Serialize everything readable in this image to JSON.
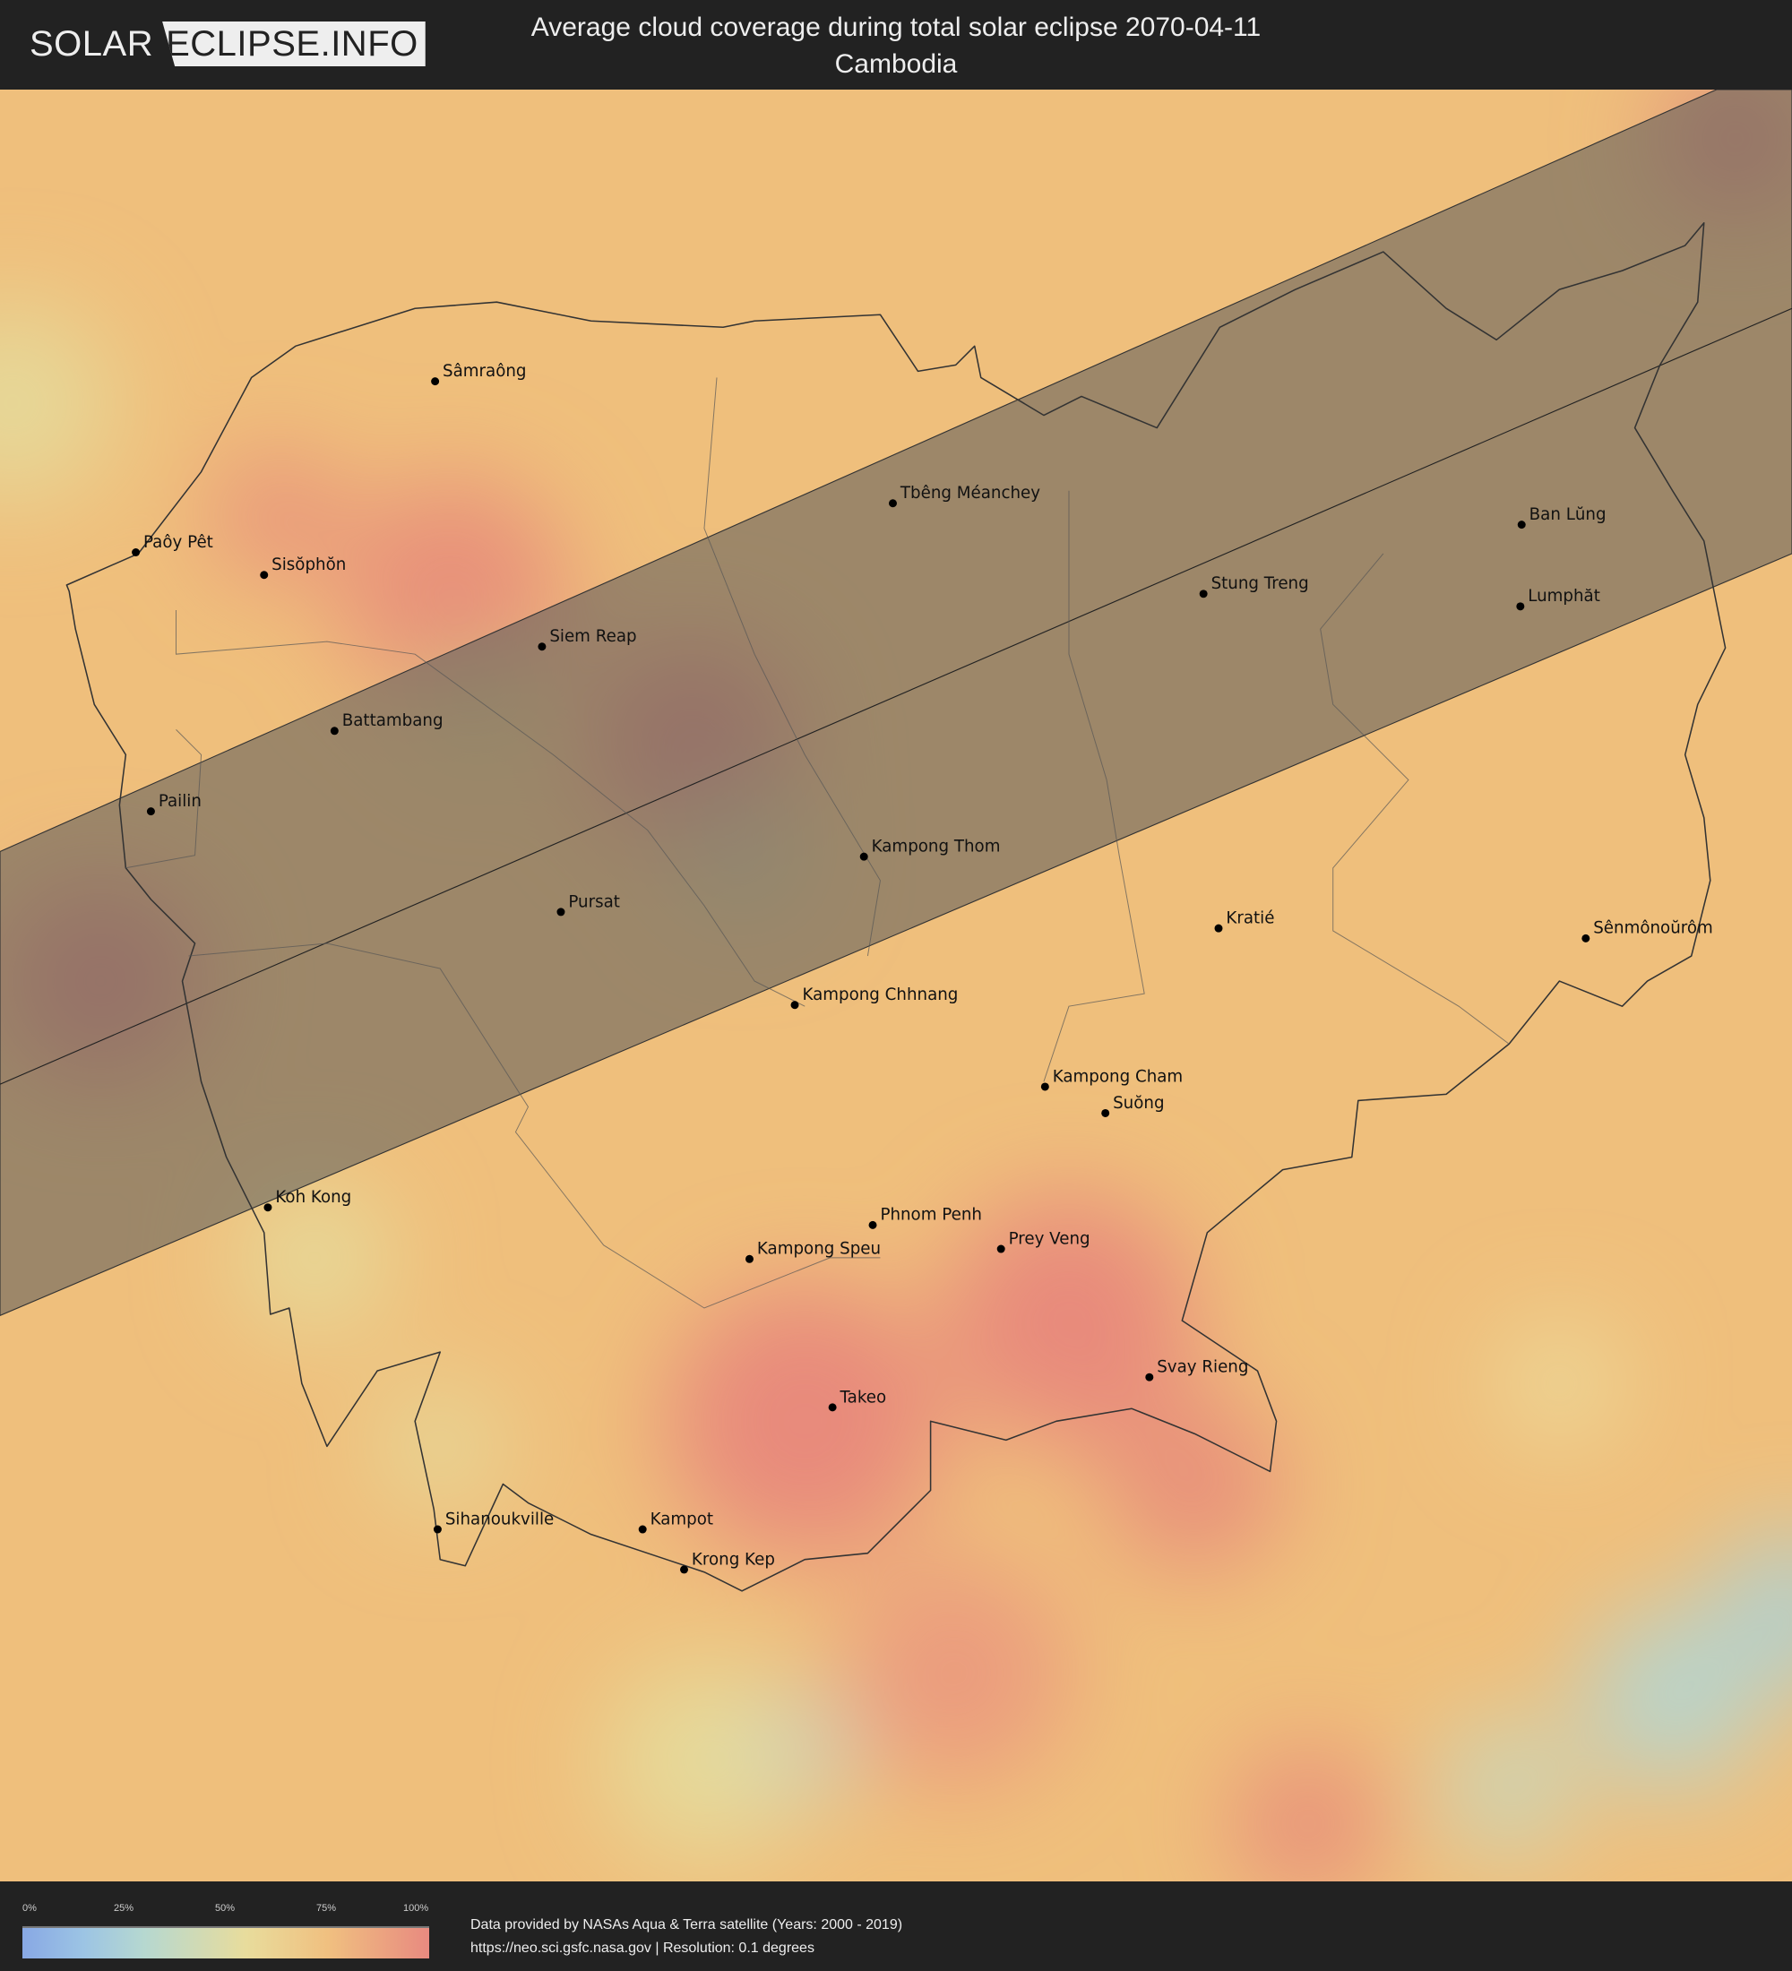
{
  "header": {
    "logo_left": "SOLAR",
    "logo_right": "ECLIPSE.INFO",
    "title": "Average cloud coverage during total solar eclipse 2070-04-11",
    "subtitle": "Cambodia"
  },
  "map": {
    "country": "Cambodia",
    "eclipse_band_color": "#5a5a5a",
    "cities": [
      "Sâmraông",
      "Paôy Pêt",
      "Sisŏphŏn",
      "Tbêng Méanchey",
      "Ban Lŭng",
      "Stung Treng",
      "Lumphăt",
      "Siem Reap",
      "Battambang",
      "Pailin",
      "Kampong Thom",
      "Pursat",
      "Kratié",
      "Sênmônoŭrôm",
      "Kampong Chhnang",
      "Kampong Cham",
      "Suŏng",
      "Koh Kong",
      "Phnom Penh",
      "Prey Veng",
      "Kampong Speu",
      "Svay Rieng",
      "Takeo",
      "Sihanoukville",
      "Kampot",
      "Krong Kep"
    ]
  },
  "legend": {
    "ticks": [
      "0%",
      "25%",
      "50%",
      "75%",
      "100%"
    ],
    "colors": [
      "#88a8e4",
      "#b6d8d0",
      "#e8dc9c",
      "#f0c080",
      "#e88a80"
    ]
  },
  "footer": {
    "credit_line1": "Data provided by NASAs Aqua & Terra satellite (Years: 2000 - 2019)",
    "credit_line2": "https://neo.sci.gsfc.nasa.gov | Resolution: 0.1 degrees"
  }
}
